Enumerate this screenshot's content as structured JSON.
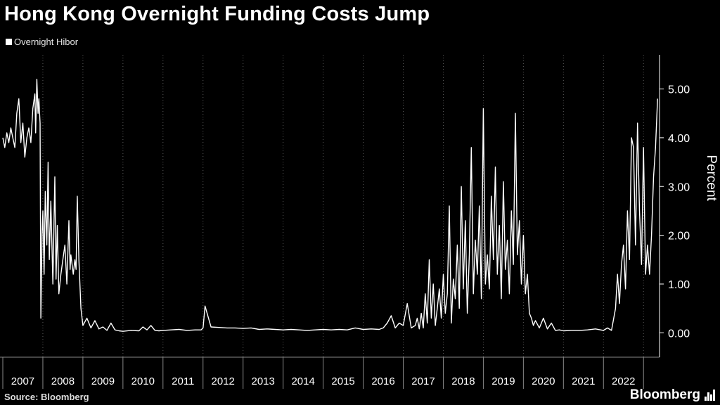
{
  "title": "Hong Kong Overnight Funding Costs Jump",
  "legend": {
    "label": "Overnight Hibor"
  },
  "footer": {
    "source": "Source: Bloomberg",
    "brand": "Bloomberg"
  },
  "colors": {
    "background": "#000000",
    "line": "#ffffff",
    "grid": "#5a5a5a"
  },
  "chart_data": {
    "type": "line",
    "title": "Hong Kong Overnight Funding Costs Jump",
    "ylabel": "Percent",
    "ylim": [
      -0.5,
      5.7
    ],
    "xlim": [
      2007,
      2023.4
    ],
    "y_ticks": [
      "0.00",
      "1.00",
      "2.00",
      "3.00",
      "4.00",
      "5.00"
    ],
    "x_ticks": [
      "2007",
      "2008",
      "2009",
      "2010",
      "2011",
      "2012",
      "2013",
      "2014",
      "2015",
      "2016",
      "2017",
      "2018",
      "2019",
      "2020",
      "2021",
      "2022"
    ],
    "grid": "vertical dotted",
    "series": [
      {
        "name": "Overnight Hibor",
        "x": [
          2007.0,
          2007.05,
          2007.1,
          2007.15,
          2007.2,
          2007.25,
          2007.3,
          2007.35,
          2007.4,
          2007.45,
          2007.5,
          2007.55,
          2007.6,
          2007.65,
          2007.7,
          2007.75,
          2007.8,
          2007.82,
          2007.85,
          2007.88,
          2007.9,
          2007.93,
          2007.95,
          2007.98,
          2008.0,
          2008.03,
          2008.06,
          2008.1,
          2008.13,
          2008.16,
          2008.2,
          2008.25,
          2008.3,
          2008.33,
          2008.36,
          2008.4,
          2008.45,
          2008.5,
          2008.55,
          2008.6,
          2008.65,
          2008.68,
          2008.7,
          2008.73,
          2008.76,
          2008.8,
          2008.83,
          2008.86,
          2008.9,
          2008.95,
          2009.0,
          2009.1,
          2009.2,
          2009.3,
          2009.4,
          2009.5,
          2009.6,
          2009.7,
          2009.8,
          2009.9,
          2010.0,
          2010.2,
          2010.4,
          2010.5,
          2010.6,
          2010.7,
          2010.8,
          2010.9,
          2011.0,
          2011.2,
          2011.4,
          2011.6,
          2011.8,
          2011.95,
          2012.0,
          2012.05,
          2012.2,
          2012.4,
          2012.6,
          2012.8,
          2013.0,
          2013.2,
          2013.4,
          2013.6,
          2013.8,
          2014.0,
          2014.2,
          2014.4,
          2014.6,
          2014.8,
          2015.0,
          2015.2,
          2015.4,
          2015.6,
          2015.8,
          2016.0,
          2016.2,
          2016.4,
          2016.5,
          2016.6,
          2016.7,
          2016.8,
          2016.9,
          2017.0,
          2017.1,
          2017.2,
          2017.3,
          2017.35,
          2017.4,
          2017.45,
          2017.5,
          2017.55,
          2017.6,
          2017.65,
          2017.7,
          2017.75,
          2017.8,
          2017.85,
          2017.9,
          2017.95,
          2018.0,
          2018.05,
          2018.1,
          2018.15,
          2018.2,
          2018.25,
          2018.3,
          2018.35,
          2018.4,
          2018.45,
          2018.5,
          2018.55,
          2018.6,
          2018.65,
          2018.7,
          2018.75,
          2018.8,
          2018.85,
          2018.9,
          2018.95,
          2019.0,
          2019.05,
          2019.1,
          2019.15,
          2019.2,
          2019.25,
          2019.3,
          2019.35,
          2019.4,
          2019.45,
          2019.5,
          2019.55,
          2019.6,
          2019.65,
          2019.7,
          2019.75,
          2019.8,
          2019.85,
          2019.9,
          2019.95,
          2020.0,
          2020.05,
          2020.1,
          2020.15,
          2020.2,
          2020.25,
          2020.3,
          2020.4,
          2020.5,
          2020.6,
          2020.7,
          2020.8,
          2020.9,
          2021.0,
          2021.2,
          2021.4,
          2021.6,
          2021.8,
          2022.0,
          2022.1,
          2022.2,
          2022.3,
          2022.35,
          2022.4,
          2022.45,
          2022.5,
          2022.55,
          2022.6,
          2022.65,
          2022.7,
          2022.75,
          2022.8,
          2022.85,
          2022.9,
          2022.95,
          2023.0,
          2023.05,
          2023.1,
          2023.15,
          2023.2,
          2023.25,
          2023.3,
          2023.35
        ],
        "y": [
          4.0,
          3.8,
          4.1,
          3.9,
          4.2,
          4.0,
          3.8,
          4.5,
          4.8,
          3.9,
          4.3,
          3.6,
          4.0,
          4.2,
          3.9,
          4.6,
          4.9,
          4.1,
          5.2,
          4.5,
          4.8,
          4.3,
          0.3,
          2.0,
          2.5,
          1.2,
          2.9,
          1.8,
          3.5,
          1.5,
          2.7,
          1.0,
          3.2,
          1.1,
          2.2,
          0.8,
          1.2,
          1.5,
          1.8,
          1.0,
          2.3,
          1.3,
          1.6,
          1.4,
          1.2,
          1.5,
          1.3,
          2.8,
          1.5,
          0.5,
          0.15,
          0.3,
          0.1,
          0.25,
          0.08,
          0.12,
          0.05,
          0.2,
          0.06,
          0.04,
          0.03,
          0.05,
          0.04,
          0.12,
          0.06,
          0.15,
          0.05,
          0.04,
          0.05,
          0.06,
          0.07,
          0.05,
          0.06,
          0.06,
          0.1,
          0.55,
          0.12,
          0.11,
          0.1,
          0.1,
          0.09,
          0.1,
          0.07,
          0.08,
          0.07,
          0.06,
          0.07,
          0.06,
          0.05,
          0.06,
          0.07,
          0.06,
          0.07,
          0.06,
          0.1,
          0.07,
          0.08,
          0.07,
          0.1,
          0.2,
          0.35,
          0.1,
          0.2,
          0.15,
          0.6,
          0.1,
          0.15,
          0.3,
          0.08,
          0.4,
          0.1,
          0.8,
          0.2,
          1.5,
          0.3,
          1.0,
          0.15,
          0.5,
          0.9,
          0.3,
          1.2,
          0.4,
          0.8,
          2.6,
          0.2,
          1.1,
          0.7,
          1.8,
          0.5,
          3.0,
          0.9,
          2.3,
          0.4,
          1.6,
          3.8,
          0.8,
          1.9,
          1.2,
          2.6,
          0.7,
          4.6,
          1.0,
          1.6,
          0.9,
          2.8,
          1.5,
          3.4,
          1.2,
          2.2,
          0.7,
          3.1,
          1.3,
          1.9,
          0.8,
          2.5,
          1.4,
          4.5,
          1.6,
          2.3,
          1.0,
          2.0,
          0.8,
          1.2,
          0.4,
          0.3,
          0.15,
          0.25,
          0.1,
          0.3,
          0.08,
          0.2,
          0.05,
          0.06,
          0.04,
          0.05,
          0.05,
          0.06,
          0.08,
          0.05,
          0.1,
          0.05,
          0.5,
          1.2,
          0.6,
          1.4,
          1.8,
          0.9,
          2.5,
          1.5,
          4.0,
          3.8,
          1.8,
          4.3,
          2.5,
          1.4,
          3.8,
          1.2,
          1.8,
          1.2,
          2.0,
          3.2,
          3.8,
          4.8
        ]
      }
    ]
  }
}
